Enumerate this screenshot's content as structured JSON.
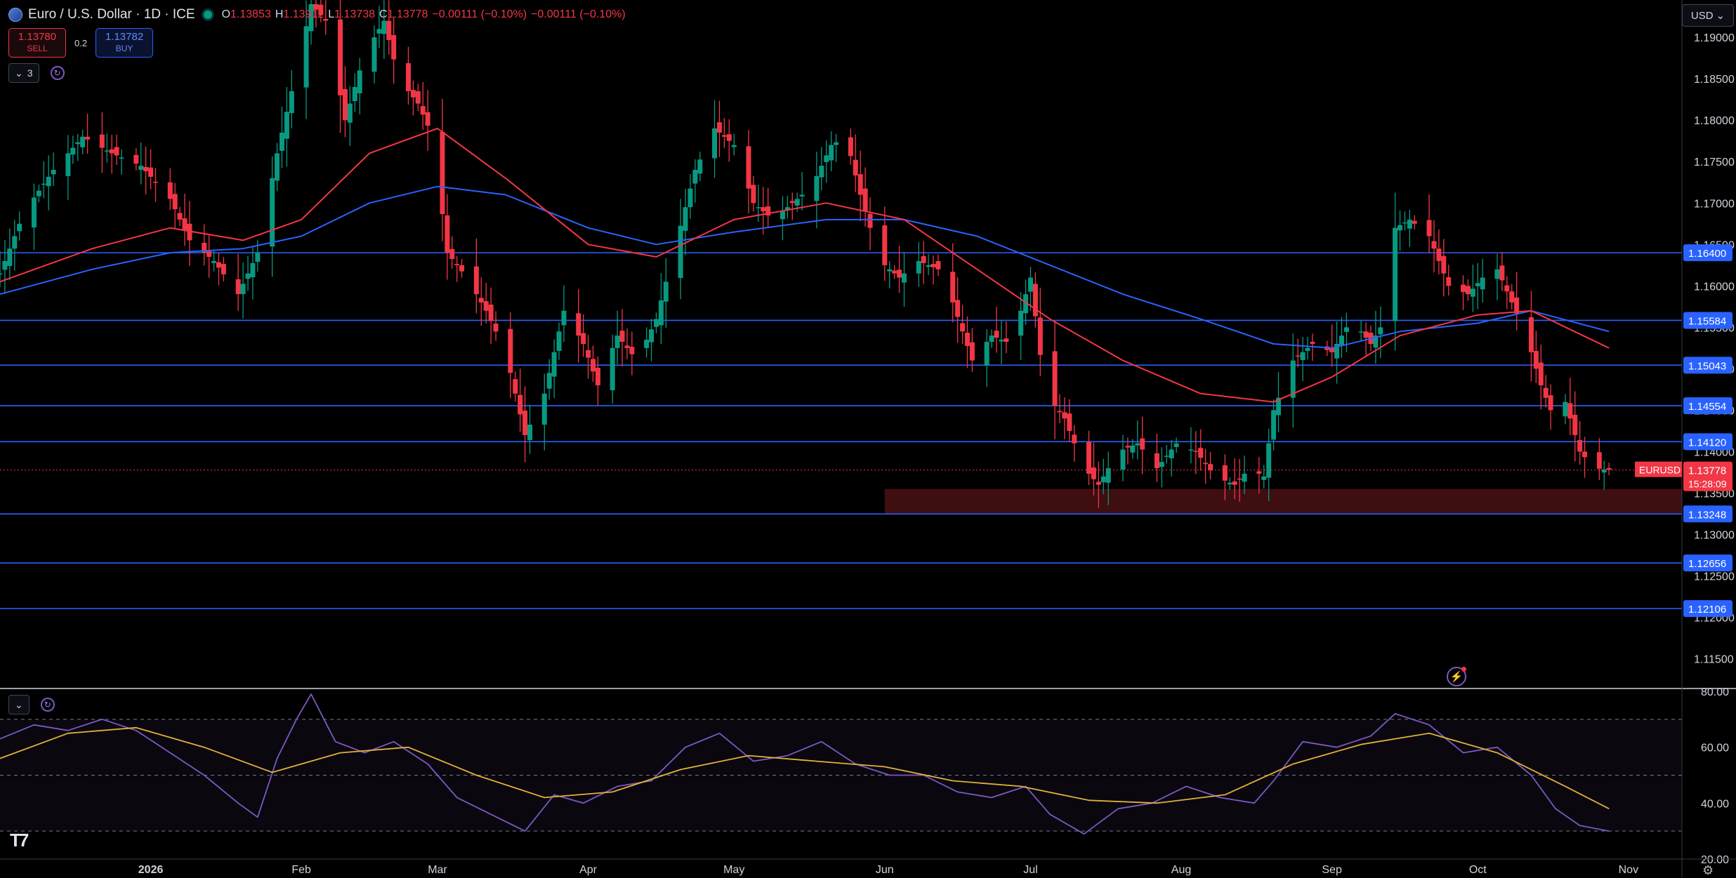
{
  "header": {
    "symbol_title": "Euro / U.S. Dollar · 1D · ICE",
    "ohlc": [
      {
        "key": "O",
        "value": "1.13853"
      },
      {
        "key": "H",
        "value": "1.13912"
      },
      {
        "key": "L",
        "value": "1.13738"
      },
      {
        "key": "C",
        "value": "1.13778"
      }
    ],
    "change": "−0.00111 (−0.10%)",
    "change_repeat": "−0.00111 (−0.10%)"
  },
  "trade": {
    "sell_price": "1.13780",
    "sell_label": "SELL",
    "spread": "0.2",
    "buy_price": "1.13782",
    "buy_label": "BUY"
  },
  "indicators_toggle": {
    "count": "3"
  },
  "currency": "USD",
  "colors": {
    "up": "#089981",
    "down": "#f23645",
    "ema_fast": "#f23645",
    "ema_slow": "#2962ff",
    "level_line": "#2962ff",
    "rsi_line": "#7e57c2",
    "rsi_ma": "#e0b13a",
    "zone": "#4a1014"
  },
  "icons": [
    "symbol-icon",
    "live-dot-icon",
    "chevron-down-icon",
    "refresh-icon",
    "chevron-down-icon",
    "refresh-icon",
    "tradingview-logo-icon",
    "bolt-icon",
    "gear-icon"
  ],
  "chart_data": [
    {
      "type": "candlestick",
      "symbol": "EURUSD",
      "x_labels": [
        {
          "date": "2026-01-01",
          "label": "2026"
        },
        {
          "date": "2026-02-01",
          "label": "Feb"
        },
        {
          "date": "2026-03-01",
          "label": "Mar"
        },
        {
          "date": "2026-04-01",
          "label": "Apr"
        },
        {
          "date": "2026-05-01",
          "label": "May"
        },
        {
          "date": "2026-06-01",
          "label": "Jun"
        },
        {
          "date": "2026-07-01",
          "label": "Jul"
        },
        {
          "date": "2026-08-01",
          "label": "Aug"
        },
        {
          "date": "2026-09-01",
          "label": "Sep"
        },
        {
          "date": "2026-10-01",
          "label": "Oct"
        },
        {
          "date": "2026-11-01",
          "label": "Nov"
        }
      ],
      "xlim": [
        "2025-12-01",
        "2026-11-12"
      ],
      "ylim": [
        1.1115,
        1.1945
      ],
      "y_ticks": [
        "1.19000",
        "1.18500",
        "1.18000",
        "1.17500",
        "1.17000",
        "1.16500",
        "1.16000",
        "1.15500",
        "1.15000",
        "1.14500",
        "1.14000",
        "1.13500",
        "1.13000",
        "1.12500",
        "1.12000",
        "1.11500"
      ],
      "close_path": [
        [
          "2025-12-01",
          1.1615
        ],
        [
          "2025-12-06",
          1.169
        ],
        [
          "2025-12-12",
          1.174
        ],
        [
          "2025-12-18",
          1.178
        ],
        [
          "2025-12-24",
          1.176
        ],
        [
          "2025-12-30",
          1.1745
        ],
        [
          "2026-01-05",
          1.1705
        ],
        [
          "2026-01-09",
          1.1655
        ],
        [
          "2026-01-14",
          1.163
        ],
        [
          "2026-01-19",
          1.159
        ],
        [
          "2026-01-23",
          1.164
        ],
        [
          "2026-01-27",
          1.176
        ],
        [
          "2026-01-31",
          1.186
        ],
        [
          "2026-02-03",
          1.194
        ],
        [
          "2026-02-06",
          1.192
        ],
        [
          "2026-02-10",
          1.18
        ],
        [
          "2026-02-14",
          1.188
        ],
        [
          "2026-02-18",
          1.192
        ],
        [
          "2026-02-21",
          1.185
        ],
        [
          "2026-02-25",
          1.182
        ],
        [
          "2026-02-28",
          1.178
        ],
        [
          "2026-03-03",
          1.164
        ],
        [
          "2026-03-07",
          1.161
        ],
        [
          "2026-03-11",
          1.157
        ],
        [
          "2026-03-15",
          1.152
        ],
        [
          "2026-03-19",
          1.142
        ],
        [
          "2026-03-23",
          1.147
        ],
        [
          "2026-03-27",
          1.157
        ],
        [
          "2026-03-31",
          1.153
        ],
        [
          "2026-04-03",
          1.148
        ],
        [
          "2026-04-07",
          1.154
        ],
        [
          "2026-04-11",
          1.151
        ],
        [
          "2026-04-15",
          1.156
        ],
        [
          "2026-04-19",
          1.165
        ],
        [
          "2026-04-23",
          1.174
        ],
        [
          "2026-04-27",
          1.179
        ],
        [
          "2026-05-01",
          1.177
        ],
        [
          "2026-05-05",
          1.17
        ],
        [
          "2026-05-09",
          1.168
        ],
        [
          "2026-05-13",
          1.17
        ],
        [
          "2026-05-17",
          1.172
        ],
        [
          "2026-05-21",
          1.177
        ],
        [
          "2026-05-24",
          1.178
        ],
        [
          "2026-05-27",
          1.171
        ],
        [
          "2026-05-31",
          1.163
        ],
        [
          "2026-06-04",
          1.161
        ],
        [
          "2026-06-08",
          1.163
        ],
        [
          "2026-06-12",
          1.162
        ],
        [
          "2026-06-15",
          1.158
        ],
        [
          "2026-06-19",
          1.151
        ],
        [
          "2026-06-23",
          1.154
        ],
        [
          "2026-06-27",
          1.153
        ],
        [
          "2026-07-01",
          1.161
        ],
        [
          "2026-07-04",
          1.147
        ],
        [
          "2026-07-08",
          1.144
        ],
        [
          "2026-07-12",
          1.138
        ],
        [
          "2026-07-15",
          1.136
        ],
        [
          "2026-07-19",
          1.14
        ],
        [
          "2026-07-23",
          1.141
        ],
        [
          "2026-07-27",
          1.138
        ],
        [
          "2026-07-31",
          1.141
        ],
        [
          "2026-08-04",
          1.14
        ],
        [
          "2026-08-08",
          1.137
        ],
        [
          "2026-08-12",
          1.136
        ],
        [
          "2026-08-15",
          1.138
        ],
        [
          "2026-08-18",
          1.137
        ],
        [
          "2026-08-20",
          1.145
        ],
        [
          "2026-08-24",
          1.151
        ],
        [
          "2026-08-28",
          1.153
        ],
        [
          "2026-09-01",
          1.152
        ],
        [
          "2026-09-05",
          1.156
        ],
        [
          "2026-09-09",
          1.153
        ],
        [
          "2026-09-12",
          1.156
        ],
        [
          "2026-09-14",
          1.167
        ],
        [
          "2026-09-17",
          1.168
        ],
        [
          "2026-09-21",
          1.166
        ],
        [
          "2026-09-25",
          1.16
        ],
        [
          "2026-09-29",
          1.159
        ],
        [
          "2026-10-02",
          1.161
        ],
        [
          "2026-10-05",
          1.162
        ],
        [
          "2026-10-08",
          1.158
        ],
        [
          "2026-10-11",
          1.154
        ],
        [
          "2026-10-14",
          1.148
        ],
        [
          "2026-10-16",
          1.145
        ],
        [
          "2026-10-19",
          1.146
        ],
        [
          "2026-10-22",
          1.14
        ],
        [
          "2026-10-25",
          1.138
        ],
        [
          "2026-10-28",
          1.1378
        ]
      ],
      "ema_fast": [
        [
          "2025-12-01",
          1.1605
        ],
        [
          "2025-12-20",
          1.1645
        ],
        [
          "2026-01-05",
          1.167
        ],
        [
          "2026-01-20",
          1.1655
        ],
        [
          "2026-02-01",
          1.168
        ],
        [
          "2026-02-15",
          1.176
        ],
        [
          "2026-03-01",
          1.179
        ],
        [
          "2026-03-15",
          1.173
        ],
        [
          "2026-04-01",
          1.165
        ],
        [
          "2026-04-15",
          1.1635
        ],
        [
          "2026-05-01",
          1.168
        ],
        [
          "2026-05-20",
          1.17
        ],
        [
          "2026-06-05",
          1.168
        ],
        [
          "2026-06-20",
          1.162
        ],
        [
          "2026-07-05",
          1.156
        ],
        [
          "2026-07-20",
          1.151
        ],
        [
          "2026-08-05",
          1.147
        ],
        [
          "2026-08-20",
          1.146
        ],
        [
          "2026-09-01",
          1.149
        ],
        [
          "2026-09-15",
          1.154
        ],
        [
          "2026-10-01",
          1.1565
        ],
        [
          "2026-10-12",
          1.157
        ],
        [
          "2026-10-28",
          1.1525
        ]
      ],
      "ema_slow": [
        [
          "2025-12-01",
          1.159
        ],
        [
          "2025-12-20",
          1.162
        ],
        [
          "2026-01-05",
          1.164
        ],
        [
          "2026-01-20",
          1.1645
        ],
        [
          "2026-02-01",
          1.166
        ],
        [
          "2026-02-15",
          1.17
        ],
        [
          "2026-03-01",
          1.172
        ],
        [
          "2026-03-15",
          1.171
        ],
        [
          "2026-04-01",
          1.167
        ],
        [
          "2026-04-15",
          1.165
        ],
        [
          "2026-05-01",
          1.1665
        ],
        [
          "2026-05-20",
          1.168
        ],
        [
          "2026-06-05",
          1.168
        ],
        [
          "2026-06-20",
          1.166
        ],
        [
          "2026-07-05",
          1.1625
        ],
        [
          "2026-07-20",
          1.159
        ],
        [
          "2026-08-05",
          1.156
        ],
        [
          "2026-08-20",
          1.153
        ],
        [
          "2026-09-01",
          1.1525
        ],
        [
          "2026-09-15",
          1.1545
        ],
        [
          "2026-10-01",
          1.1555
        ],
        [
          "2026-10-12",
          1.157
        ],
        [
          "2026-10-28",
          1.1545
        ]
      ],
      "horizontal_levels": [
        "1.16400",
        "1.15584",
        "1.15043",
        "1.14554",
        "1.14120",
        "1.13248",
        "1.12656",
        "1.12106"
      ],
      "zone": {
        "x_from": "2026-06-01",
        "y_top": 1.1355,
        "y_bottom": 1.1325
      },
      "last_price": {
        "symbol": "EURUSD",
        "price": "1.13778",
        "countdown": "15:28:09"
      }
    },
    {
      "type": "line",
      "name": "RSI",
      "ylim": [
        20,
        80
      ],
      "y_ticks": [
        "80.00",
        "60.00",
        "40.00",
        "20.00"
      ],
      "bands": [
        70,
        50,
        30
      ],
      "rsi": [
        [
          "2025-12-01",
          63
        ],
        [
          "2025-12-08",
          68
        ],
        [
          "2025-12-15",
          66
        ],
        [
          "2025-12-22",
          70
        ],
        [
          "2025-12-29",
          66
        ],
        [
          "2026-01-05",
          58
        ],
        [
          "2026-01-12",
          50
        ],
        [
          "2026-01-19",
          40
        ],
        [
          "2026-01-23",
          35
        ],
        [
          "2026-01-27",
          56
        ],
        [
          "2026-01-31",
          70
        ],
        [
          "2026-02-03",
          79
        ],
        [
          "2026-02-08",
          62
        ],
        [
          "2026-02-14",
          58
        ],
        [
          "2026-02-20",
          62
        ],
        [
          "2026-02-27",
          54
        ],
        [
          "2026-03-05",
          42
        ],
        [
          "2026-03-12",
          36
        ],
        [
          "2026-03-19",
          30
        ],
        [
          "2026-03-25",
          43
        ],
        [
          "2026-03-31",
          40
        ],
        [
          "2026-04-07",
          46
        ],
        [
          "2026-04-14",
          48
        ],
        [
          "2026-04-21",
          60
        ],
        [
          "2026-04-28",
          65
        ],
        [
          "2026-05-05",
          55
        ],
        [
          "2026-05-12",
          57
        ],
        [
          "2026-05-19",
          62
        ],
        [
          "2026-05-26",
          54
        ],
        [
          "2026-06-02",
          50
        ],
        [
          "2026-06-09",
          50
        ],
        [
          "2026-06-16",
          44
        ],
        [
          "2026-06-23",
          42
        ],
        [
          "2026-06-30",
          46
        ],
        [
          "2026-07-05",
          36
        ],
        [
          "2026-07-12",
          29
        ],
        [
          "2026-07-19",
          38
        ],
        [
          "2026-07-26",
          40
        ],
        [
          "2026-08-02",
          46
        ],
        [
          "2026-08-09",
          42
        ],
        [
          "2026-08-16",
          40
        ],
        [
          "2026-08-20",
          48
        ],
        [
          "2026-08-26",
          62
        ],
        [
          "2026-09-02",
          60
        ],
        [
          "2026-09-09",
          64
        ],
        [
          "2026-09-14",
          72
        ],
        [
          "2026-09-21",
          68
        ],
        [
          "2026-09-28",
          58
        ],
        [
          "2026-10-05",
          60
        ],
        [
          "2026-10-12",
          50
        ],
        [
          "2026-10-17",
          38
        ],
        [
          "2026-10-22",
          32
        ],
        [
          "2026-10-28",
          30
        ]
      ],
      "rsi_ma": [
        [
          "2025-12-01",
          56
        ],
        [
          "2025-12-15",
          65
        ],
        [
          "2025-12-29",
          67
        ],
        [
          "2026-01-12",
          60
        ],
        [
          "2026-01-26",
          51
        ],
        [
          "2026-02-09",
          58
        ],
        [
          "2026-02-23",
          60
        ],
        [
          "2026-03-09",
          50
        ],
        [
          "2026-03-23",
          42
        ],
        [
          "2026-04-06",
          44
        ],
        [
          "2026-04-20",
          52
        ],
        [
          "2026-05-04",
          57
        ],
        [
          "2026-05-18",
          55
        ],
        [
          "2026-06-01",
          53
        ],
        [
          "2026-06-15",
          48
        ],
        [
          "2026-06-29",
          46
        ],
        [
          "2026-07-13",
          41
        ],
        [
          "2026-07-27",
          40
        ],
        [
          "2026-08-10",
          43
        ],
        [
          "2026-08-24",
          54
        ],
        [
          "2026-09-07",
          61
        ],
        [
          "2026-09-21",
          65
        ],
        [
          "2026-10-05",
          58
        ],
        [
          "2026-10-19",
          46
        ],
        [
          "2026-10-28",
          38
        ]
      ]
    }
  ]
}
